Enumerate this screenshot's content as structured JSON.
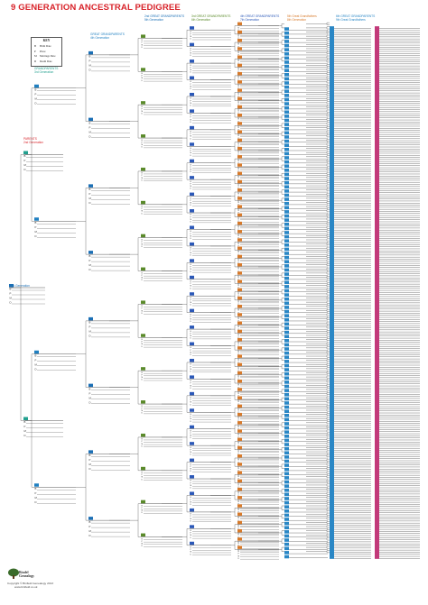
{
  "document": {
    "title": "9 GENERATION ANCESTRAL PEDIGREE"
  },
  "key": {
    "title": "KEY",
    "rows": [
      {
        "abbr": "B",
        "meaning": "Birth Date"
      },
      {
        "abbr": "P",
        "meaning": "Place"
      },
      {
        "abbr": "M",
        "meaning": "Marriage Date"
      },
      {
        "abbr": "D",
        "meaning": "Death Date"
      }
    ]
  },
  "generation_labels": {
    "you": "1st Generation",
    "parents": "PARENTS",
    "parents_gen": "2nd Generation",
    "grandparents": "GRANDPARENTS",
    "grandparents_gen": "3rd Generation",
    "great_grandparents": "GREAT GRANDPARENTS",
    "great_grandparents_gen": "4th Generation",
    "g2": "2nd GREAT GRANDPARENTS",
    "g2_gen": "5th Generation",
    "g3": "3rd GREAT GRANDPARENTS",
    "g3_gen": "6th Generation",
    "g4": "4th GREAT GRANDPARENTS",
    "g4_gen": "7th Generation",
    "g5": "5th Great Grandfathers",
    "g5_gen": "8th Generation",
    "g6": "6th GREAT GRANDPARENTS",
    "g6_gen": "9th Great Grandfathers"
  },
  "field_letters": [
    "B",
    "P",
    "M",
    "D"
  ],
  "generation_colors": [
    "#1b6fb5",
    "#1b6fb5",
    "#23a08f",
    "#1f7fc0",
    "#1b6fb5",
    "#5a8a2a",
    "#2b58b8",
    "#d77a2b",
    "#2a87c5",
    "#c23a7a"
  ],
  "label_colors": {
    "red": "#d8232a",
    "teal": "#23a08f",
    "blue": "#1f7fc0",
    "green": "#5a8a2a",
    "navy": "#2b58b8",
    "orange": "#d77a2b",
    "sky": "#2a87c5",
    "magenta": "#c23a7a"
  },
  "footer": {
    "logo_line1": "Bindel",
    "logo_line2": "Genealogy",
    "copyright": "Copyright © Binfield Genealogy 2013",
    "website": "www.binfield.co.uk"
  }
}
